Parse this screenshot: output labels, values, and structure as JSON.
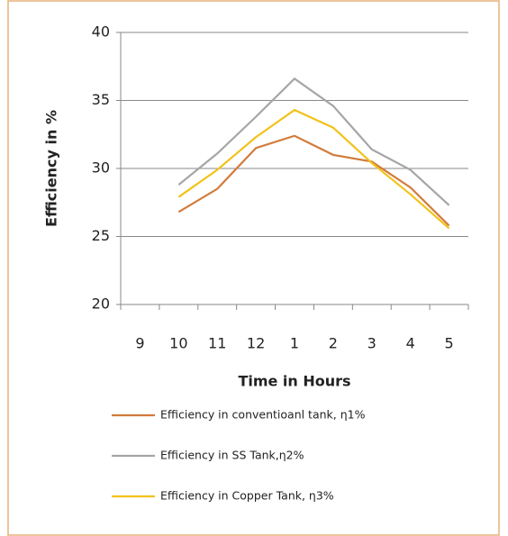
{
  "chart_data": {
    "type": "line",
    "x_label": "Time in Hours",
    "y_label": "Efficiency in %",
    "categories": [
      "9",
      "10",
      "11",
      "12",
      "1",
      "2",
      "3",
      "4",
      "5"
    ],
    "series": [
      {
        "name": "Efficiency in conventioanl tank, η1%",
        "color": "#d27b3c",
        "values": [
          null,
          26.8,
          28.5,
          31.5,
          32.4,
          31.0,
          30.5,
          28.6,
          25.8
        ]
      },
      {
        "name": "Efficiency in SS Tank,η2%",
        "color": "#a6a6a6",
        "values": [
          null,
          28.8,
          31.1,
          33.8,
          36.6,
          34.6,
          31.4,
          29.9,
          27.3
        ]
      },
      {
        "name": "Efficiency in Copper Tank, η3%",
        "color": "#f2c21b",
        "values": [
          null,
          27.9,
          29.9,
          32.3,
          34.3,
          33.0,
          30.4,
          28.1,
          25.6
        ]
      }
    ],
    "ylim": [
      20,
      40
    ],
    "yticks": [
      20,
      25,
      30,
      35,
      40
    ],
    "grid": true
  }
}
